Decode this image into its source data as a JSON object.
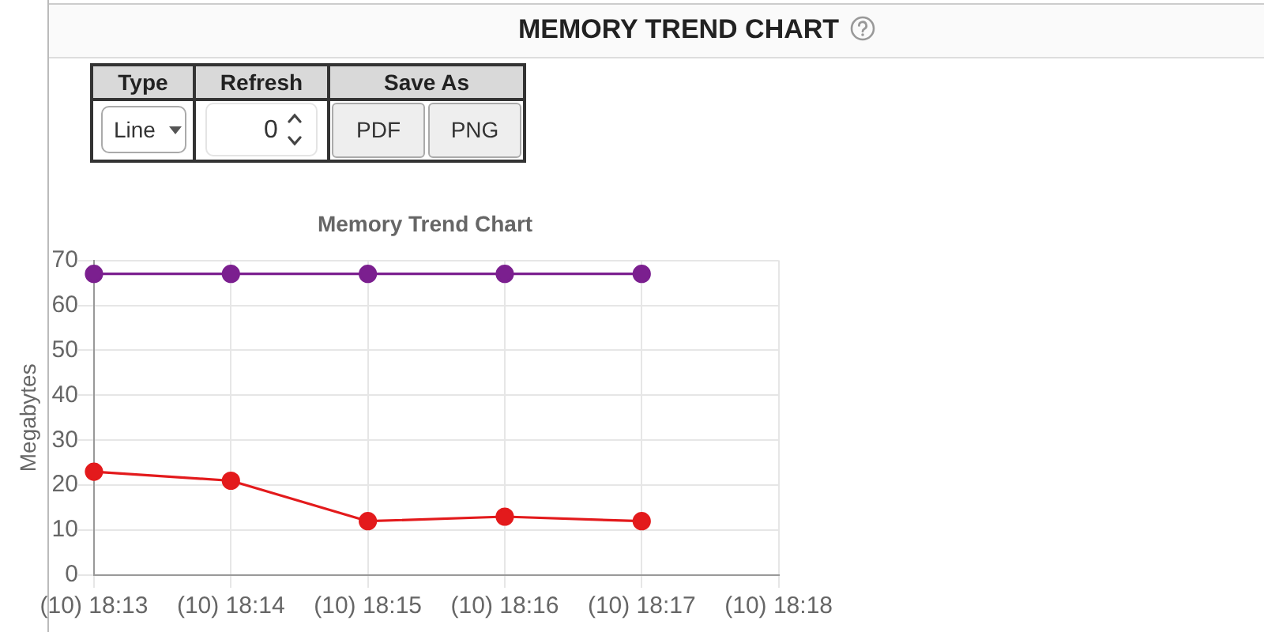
{
  "chart_data": {
    "type": "line",
    "title": "MEMORY TREND CHART",
    "subtitle": "Memory Trend Chart",
    "ylabel": "Megabytes",
    "categories": [
      "(10) 18:13",
      "(10) 18:14",
      "(10) 18:15",
      "(10) 18:16",
      "(10) 18:17",
      "(10) 18:18"
    ],
    "series": [
      {
        "color": "#7b1f8f",
        "values": [
          67,
          67,
          67,
          67,
          67,
          null
        ]
      },
      {
        "color": "#e31a1c",
        "values": [
          23,
          21,
          12,
          13,
          12,
          null
        ]
      }
    ],
    "ylim": [
      0,
      70
    ],
    "yticks": [
      0,
      10,
      20,
      30,
      40,
      50,
      60,
      70
    ],
    "grid": true,
    "marker": "circle",
    "annotations": [
      "Type",
      "Refresh",
      "Save As",
      "Line",
      "0",
      "PDF",
      "PNG"
    ]
  }
}
